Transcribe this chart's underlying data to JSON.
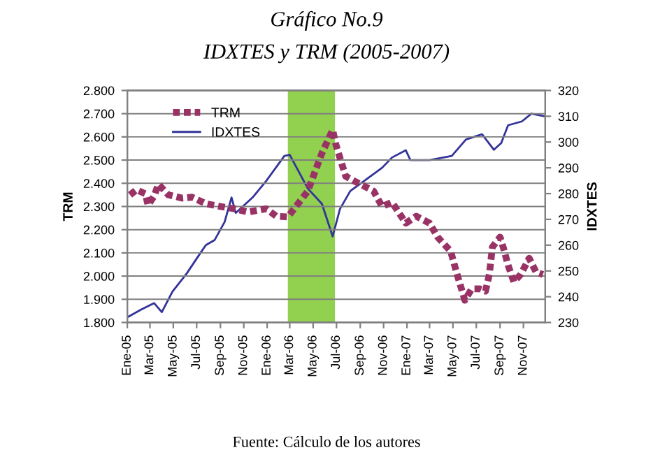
{
  "chart_data": {
    "type": "line",
    "title": "Gráfico No.9",
    "subtitle": "IDXTES y TRM (2005-2007)",
    "ylabel": "TRM",
    "y2label": "IDXTES",
    "annotations": [
      "Fuente: Cálculo de los autores"
    ],
    "xlim": [
      "2005-01-01",
      "2007-12-28"
    ],
    "xticks": [
      {
        "value": "2005-01-01",
        "label": "Ene-05"
      },
      {
        "value": "2005-03-01",
        "label": "Mar-05"
      },
      {
        "value": "2005-05-01",
        "label": "May-05"
      },
      {
        "value": "2005-07-01",
        "label": "Jul-05"
      },
      {
        "value": "2005-09-01",
        "label": "Sep-05"
      },
      {
        "value": "2005-11-01",
        "label": "Nov-05"
      },
      {
        "value": "2006-01-01",
        "label": "Ene-06"
      },
      {
        "value": "2006-03-01",
        "label": "Mar-06"
      },
      {
        "value": "2006-05-01",
        "label": "May-06"
      },
      {
        "value": "2006-07-01",
        "label": "Jul-06"
      },
      {
        "value": "2006-09-01",
        "label": "Sep-06"
      },
      {
        "value": "2006-11-01",
        "label": "Nov-06"
      },
      {
        "value": "2007-01-01",
        "label": "Ene-07"
      },
      {
        "value": "2007-03-01",
        "label": "Mar-07"
      },
      {
        "value": "2007-05-01",
        "label": "May-07"
      },
      {
        "value": "2007-07-01",
        "label": "Jul-07"
      },
      {
        "value": "2007-09-01",
        "label": "Sep-07"
      },
      {
        "value": "2007-11-01",
        "label": "Nov-07"
      }
    ],
    "ylim": [
      1800,
      2800
    ],
    "yticks": [
      {
        "value": 1800,
        "label": "1.800"
      },
      {
        "value": 1900,
        "label": "1.900"
      },
      {
        "value": 2000,
        "label": "2.000"
      },
      {
        "value": 2100,
        "label": "2.100"
      },
      {
        "value": 2200,
        "label": "2.200"
      },
      {
        "value": 2300,
        "label": "2.300"
      },
      {
        "value": 2400,
        "label": "2.400"
      },
      {
        "value": 2500,
        "label": "2.500"
      },
      {
        "value": 2600,
        "label": "2.600"
      },
      {
        "value": 2700,
        "label": "2.700"
      },
      {
        "value": 2800,
        "label": "2.800"
      }
    ],
    "y2lim": [
      230,
      320
    ],
    "y2ticks": [
      230,
      240,
      250,
      260,
      270,
      280,
      290,
      300,
      310,
      320
    ],
    "grid": "y",
    "legend": "top left",
    "bands": [
      {
        "axis": "x",
        "from": "2006-02-24",
        "to": "2006-06-27",
        "label": null,
        "color": "#92d050"
      }
    ],
    "series": [
      {
        "name": "TRM",
        "color": "#993366",
        "line_style": "dotted",
        "x": [
          "2005-01-08",
          "2005-01-25",
          "2005-02-17",
          "2005-02-24",
          "2005-03-12",
          "2005-03-23",
          "2005-04-18",
          "2005-05-24",
          "2005-06-19",
          "2005-07-25",
          "2005-09-01",
          "2005-10-07",
          "2005-11-12",
          "2005-12-30",
          "2006-01-25",
          "2006-02-24",
          "2006-04-17",
          "2006-05-24",
          "2006-06-21",
          "2006-06-29",
          "2006-07-10",
          "2006-07-25",
          "2006-08-16",
          "2006-10-06",
          "2006-10-28",
          "2006-11-23",
          "2006-12-29",
          "2007-01-25",
          "2007-03-01",
          "2007-03-22",
          "2007-04-25",
          "2007-05-12",
          "2007-06-01",
          "2007-06-19",
          "2007-07-10",
          "2007-07-25",
          "2007-08-04",
          "2007-08-12",
          "2007-09-01",
          "2007-09-10",
          "2007-09-22",
          "2007-10-07",
          "2007-10-25",
          "2007-11-16",
          "2007-12-04",
          "2007-12-22"
        ],
        "values": [
          2350,
          2372,
          2355,
          2306,
          2345,
          2396,
          2350,
          2336,
          2340,
          2312,
          2300,
          2290,
          2276,
          2290,
          2258,
          2255,
          2366,
          2530,
          2630,
          2570,
          2510,
          2430,
          2410,
          2366,
          2300,
          2318,
          2228,
          2258,
          2228,
          2168,
          2107,
          2007,
          1896,
          1945,
          1945,
          1935,
          2007,
          2125,
          2168,
          2120,
          2047,
          1975,
          2007,
          2077,
          2017,
          2007
        ]
      },
      {
        "name": "IDXTES",
        "color": "#333399",
        "line_style": "solid",
        "axis": "y2",
        "x": [
          "2005-01-01",
          "2005-02-06",
          "2005-03-12",
          "2005-04-01",
          "2005-04-29",
          "2005-06-05",
          "2005-07-11",
          "2005-07-25",
          "2005-08-17",
          "2005-09-12",
          "2005-09-30",
          "2005-10-11",
          "2005-11-24",
          "2005-12-30",
          "2006-02-15",
          "2006-03-01",
          "2006-04-17",
          "2006-05-24",
          "2006-06-21",
          "2006-07-10",
          "2006-08-06",
          "2006-09-12",
          "2006-10-28",
          "2006-11-23",
          "2006-12-29",
          "2007-01-10",
          "2007-03-01",
          "2007-04-28",
          "2007-06-04",
          "2007-07-16",
          "2007-08-16",
          "2007-09-04",
          "2007-09-22",
          "2007-10-28",
          "2007-11-22",
          "2007-12-26"
        ],
        "values": [
          232,
          235,
          237.5,
          234,
          242,
          249,
          257,
          260,
          262,
          269,
          278.5,
          272.5,
          278.5,
          285,
          294.6,
          295,
          282,
          276,
          263.4,
          274,
          281,
          285,
          290,
          294,
          296.8,
          293,
          293,
          294.6,
          301,
          303,
          297,
          299.6,
          306.5,
          308,
          311,
          310
        ]
      }
    ]
  }
}
